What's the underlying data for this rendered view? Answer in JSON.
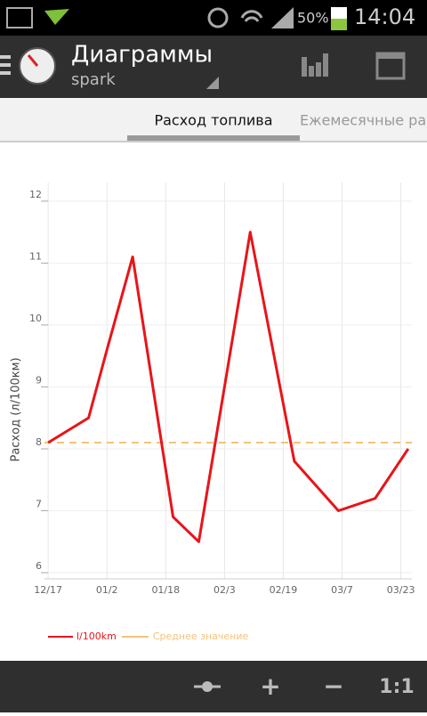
{
  "status_bar": {
    "battery": "50%",
    "time": "14:04"
  },
  "action_bar": {
    "title": "Диаграммы",
    "subtitle": "spark"
  },
  "tabs": [
    "Расход топлива",
    "Ежемесячные рас"
  ],
  "chart_data": {
    "type": "line",
    "y_label": "Расход (л/100км)",
    "x": [
      "12/17",
      "12/28",
      "01/02",
      "01/09",
      "01/20",
      "01/27",
      "02/10",
      "02/22",
      "03/06",
      "03/16",
      "03/25"
    ],
    "series": [
      {
        "name": "l/100km",
        "color": "#e8141a",
        "values": [
          8.1,
          8.5,
          9.6,
          11.1,
          6.9,
          6.5,
          11.5,
          7.8,
          7.0,
          7.2,
          8.0
        ]
      }
    ],
    "reference_line": {
      "name": "Среднее значение",
      "value": 8.1,
      "color": "#f5c27a"
    },
    "xlim": [
      "12/16",
      "03/26"
    ],
    "xticks": [
      "12/17",
      "01/2",
      "01/18",
      "02/3",
      "02/19",
      "03/7",
      "03/23"
    ],
    "ylim": [
      5.9,
      12.3
    ],
    "yticks": [
      6,
      7,
      8,
      9,
      10,
      11,
      12
    ],
    "grid": true
  },
  "toolbar": {
    "plus": "+",
    "minus": "−",
    "reset": "1:1"
  }
}
